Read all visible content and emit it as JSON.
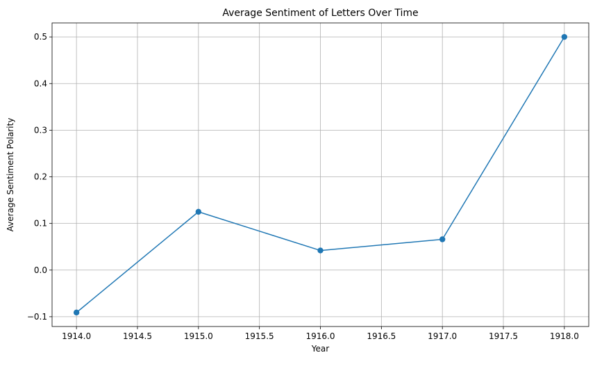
{
  "chart_data": {
    "type": "line",
    "title": "Average Sentiment of Letters Over Time",
    "xlabel": "Year",
    "ylabel": "Average Sentiment Polarity",
    "x": [
      1914.0,
      1915.0,
      1916.0,
      1917.0,
      1918.0
    ],
    "series": [
      {
        "values": [
          -0.091,
          0.125,
          0.042,
          0.066,
          0.5
        ],
        "color": "#1f77b4",
        "marker": "circle"
      }
    ],
    "xlim": [
      1913.8,
      1918.2
    ],
    "ylim": [
      -0.121,
      0.53
    ],
    "x_ticks": [
      1914.0,
      1914.5,
      1915.0,
      1915.5,
      1916.0,
      1916.5,
      1917.0,
      1917.5,
      1918.0
    ],
    "x_tick_labels": [
      "1914.0",
      "1914.5",
      "1915.0",
      "1915.5",
      "1916.0",
      "1916.5",
      "1917.0",
      "1917.5",
      "1918.0"
    ],
    "y_ticks": [
      -0.1,
      0.0,
      0.1,
      0.2,
      0.3,
      0.4,
      0.5
    ],
    "y_tick_labels": [
      "−0.1",
      "0.0",
      "0.1",
      "0.2",
      "0.3",
      "0.4",
      "0.5"
    ],
    "grid": true,
    "grid_color": "#b0b0b0"
  }
}
